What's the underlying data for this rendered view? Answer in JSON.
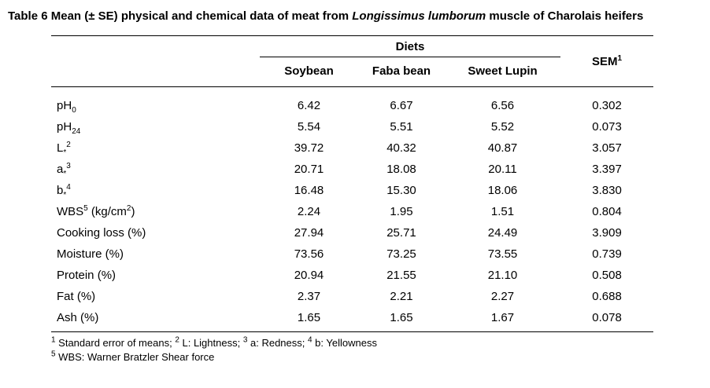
{
  "title": {
    "segments": [
      {
        "t": "Table 6"
      },
      {
        "t": " Mean (± SE) physical and chemical data of meat from "
      },
      {
        "t": "Longissimus lumborum",
        "s": "i"
      },
      {
        "t": " muscle of Charolais heifers"
      }
    ]
  },
  "table": {
    "header": {
      "diets_label": "Diets",
      "diet_columns": [
        "Soybean",
        "Faba bean",
        "Sweet Lupin"
      ],
      "sem": [
        {
          "t": "SEM"
        },
        {
          "t": "1",
          "s": "sup"
        }
      ]
    },
    "rows": [
      {
        "label": [
          {
            "t": "pH"
          },
          {
            "t": "0",
            "s": "sub"
          }
        ],
        "values": [
          "6.42",
          "6.67",
          "6.56",
          "0.302"
        ]
      },
      {
        "label": [
          {
            "t": "pH"
          },
          {
            "t": "24",
            "s": "sub"
          }
        ],
        "values": [
          "5.54",
          "5.51",
          "5.52",
          "0.073"
        ]
      },
      {
        "label": [
          {
            "t": "L"
          },
          {
            "t": "*",
            "s": "sub"
          },
          {
            "t": "2",
            "s": "sup"
          }
        ],
        "values": [
          "39.72",
          "40.32",
          "40.87",
          "3.057"
        ]
      },
      {
        "label": [
          {
            "t": "a"
          },
          {
            "t": "*",
            "s": "sub"
          },
          {
            "t": "3",
            "s": "sup"
          }
        ],
        "values": [
          "20.71",
          "18.08",
          "20.11",
          "3.397"
        ]
      },
      {
        "label": [
          {
            "t": "b"
          },
          {
            "t": "*",
            "s": "sub"
          },
          {
            "t": "4",
            "s": "sup"
          }
        ],
        "values": [
          "16.48",
          "15.30",
          "18.06",
          "3.830"
        ]
      },
      {
        "label": [
          {
            "t": "WBS"
          },
          {
            "t": "5",
            "s": "sup"
          },
          {
            "t": " (kg/cm"
          },
          {
            "t": "2",
            "s": "sup"
          },
          {
            "t": ")"
          }
        ],
        "values": [
          "2.24",
          "1.95",
          "1.51",
          "0.804"
        ]
      },
      {
        "label": [
          {
            "t": "Cooking loss (%)"
          }
        ],
        "values": [
          "27.94",
          "25.71",
          "24.49",
          "3.909"
        ]
      },
      {
        "label": [
          {
            "t": "Moisture (%)"
          }
        ],
        "values": [
          "73.56",
          "73.25",
          "73.55",
          "0.739"
        ]
      },
      {
        "label": [
          {
            "t": "Protein (%)"
          }
        ],
        "values": [
          "20.94",
          "21.55",
          "21.10",
          "0.508"
        ]
      },
      {
        "label": [
          {
            "t": "Fat (%)"
          }
        ],
        "values": [
          "2.37",
          "2.21",
          "2.27",
          "0.688"
        ]
      },
      {
        "label": [
          {
            "t": "Ash (%)"
          }
        ],
        "values": [
          "1.65",
          "1.65",
          "1.67",
          "0.078"
        ]
      }
    ]
  },
  "footnotes": [
    [
      {
        "t": "1",
        "s": "sup"
      },
      {
        "t": " Standard error of means; "
      },
      {
        "t": "2",
        "s": "sup"
      },
      {
        "t": " L: Lightness; "
      },
      {
        "t": "3",
        "s": "sup"
      },
      {
        "t": " a: Redness; "
      },
      {
        "t": "4",
        "s": "sup"
      },
      {
        "t": " b: Yellowness"
      }
    ],
    [
      {
        "t": "5",
        "s": "sup"
      },
      {
        "t": " WBS: Warner Bratzler Shear force"
      }
    ]
  ]
}
